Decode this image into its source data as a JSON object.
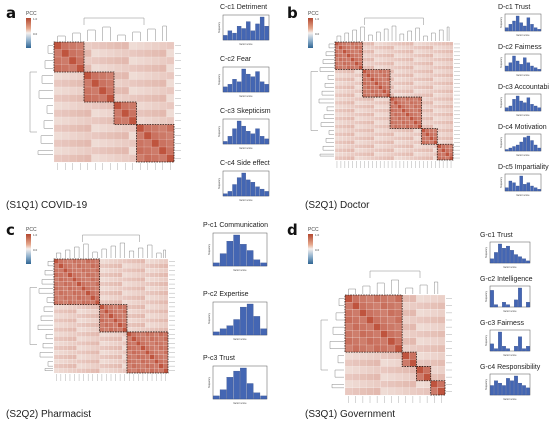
{
  "colorbar_title": "PCC",
  "colorbar_ticks": [
    "1.0",
    "0.5",
    "0.0",
    "-0.5"
  ],
  "histogram_xlabel": "factor score",
  "histogram_ylabel": "frequency",
  "chart_data": [
    {
      "panel": "a",
      "caption": "(S1Q1) COVID-19",
      "heatmap": {
        "type": "heatmap",
        "n": 16,
        "clusters": [
          4,
          4,
          3,
          5
        ],
        "value_range": [
          -1,
          1
        ]
      },
      "histograms": [
        {
          "type": "bar",
          "title": "C-c1 Detriment",
          "values": [
            2,
            4,
            3,
            6,
            5,
            8,
            4,
            7,
            10,
            6
          ]
        },
        {
          "type": "bar",
          "title": "C-c2 Fear",
          "values": [
            2,
            3,
            5,
            4,
            9,
            7,
            6,
            8,
            4,
            3
          ]
        },
        {
          "type": "bar",
          "title": "C-c3 Skepticism",
          "values": [
            1,
            3,
            6,
            9,
            7,
            5,
            4,
            6,
            3,
            2
          ]
        },
        {
          "type": "bar",
          "title": "C-c4 Side effect",
          "values": [
            1,
            2,
            5,
            8,
            10,
            7,
            6,
            4,
            3,
            2
          ]
        }
      ]
    },
    {
      "panel": "b",
      "caption": "(S2Q1) Doctor",
      "heatmap": {
        "type": "heatmap",
        "n": 30,
        "clusters": [
          7,
          7,
          8,
          4,
          4
        ],
        "value_range": [
          -1,
          1
        ]
      },
      "histograms": [
        {
          "type": "bar",
          "title": "D-c1 Trust",
          "values": [
            2,
            4,
            6,
            9,
            5,
            3,
            8,
            4,
            2,
            1
          ]
        },
        {
          "type": "bar",
          "title": "D-c2 Fairness",
          "values": [
            3,
            5,
            9,
            6,
            4,
            8,
            5,
            3,
            2,
            1
          ]
        },
        {
          "type": "bar",
          "title": "D-c3 Accountabi",
          "values": [
            2,
            3,
            7,
            9,
            6,
            5,
            8,
            4,
            3,
            2
          ]
        },
        {
          "type": "bar",
          "title": "D-c4 Motivation",
          "values": [
            1,
            2,
            3,
            4,
            6,
            9,
            10,
            7,
            4,
            2
          ]
        },
        {
          "type": "bar",
          "title": "D-c5 Impartiality",
          "values": [
            2,
            6,
            5,
            3,
            9,
            4,
            5,
            3,
            2,
            1
          ]
        }
      ]
    },
    {
      "panel": "c",
      "caption": "(S2Q2) Pharmacist",
      "heatmap": {
        "type": "heatmap",
        "n": 25,
        "clusters": [
          10,
          6,
          9
        ],
        "value_range": [
          -1,
          1
        ]
      },
      "histograms": [
        {
          "type": "bar",
          "title": "P-c1 Communication",
          "values": [
            1,
            4,
            8,
            10,
            7,
            5,
            2,
            1
          ]
        },
        {
          "type": "bar",
          "title": "P-c2 Expertise",
          "values": [
            1,
            2,
            3,
            5,
            9,
            10,
            6,
            2
          ]
        },
        {
          "type": "bar",
          "title": "P-c3 Trust",
          "values": [
            1,
            3,
            7,
            9,
            10,
            5,
            2,
            1
          ]
        }
      ]
    },
    {
      "panel": "d",
      "caption": "(S3Q1) Government",
      "heatmap": {
        "type": "heatmap",
        "n": 14,
        "clusters": [
          8,
          2,
          2,
          2
        ],
        "value_range": [
          -1,
          1
        ]
      },
      "histograms": [
        {
          "type": "bar",
          "title": "G-c1 Trust",
          "values": [
            2,
            5,
            9,
            7,
            8,
            6,
            4,
            3,
            2,
            1
          ]
        },
        {
          "type": "bar",
          "title": "G-c2 Intelligence",
          "values": [
            7,
            1,
            0,
            2,
            1,
            0,
            3,
            8,
            0,
            2
          ]
        },
        {
          "type": "bar",
          "title": "G-c3 Fairness",
          "values": [
            3,
            1,
            8,
            2,
            1,
            0,
            2,
            6,
            1,
            2
          ]
        },
        {
          "type": "bar",
          "title": "G-c4 Responsibility",
          "values": [
            4,
            6,
            5,
            4,
            7,
            6,
            8,
            5,
            4,
            3
          ]
        }
      ]
    }
  ]
}
